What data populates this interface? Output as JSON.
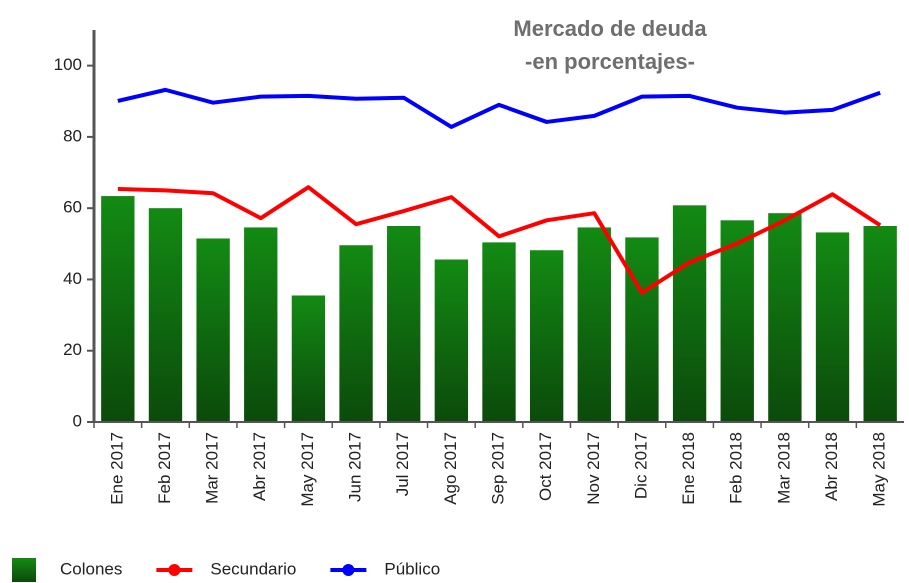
{
  "chart_data": {
    "type": "bar-line",
    "title": "Mercado de deuda",
    "subtitle": "-en porcentajes-",
    "categories": [
      "Ene 2017",
      "Feb 2017",
      "Mar 2017",
      "Abr 2017",
      "May 2017",
      "Jun 2017",
      "Jul 2017",
      "Ago 2017",
      "Sep 2017",
      "Oct 2017",
      "Nov 2017",
      "Dic 2017",
      "Ene 2018",
      "Feb 2018",
      "Mar 2018",
      "Abr 2018",
      "May 2018"
    ],
    "series": [
      {
        "name": "Colones",
        "type": "bar",
        "color": "#138a13",
        "values": [
          63.4,
          60,
          51.5,
          54.6,
          35.5,
          49.6,
          55,
          45.6,
          50.4,
          48.2,
          54.6,
          51.8,
          60.8,
          56.6,
          58.6,
          53.2,
          55
        ]
      },
      {
        "name": "Secundario",
        "type": "line",
        "color": "#ff0000",
        "values": [
          65.4,
          65,
          64.2,
          57.2,
          65.9,
          55.5,
          59.2,
          63.1,
          52.1,
          56.6,
          58.6,
          36.3,
          44.8,
          50.1,
          56.6,
          63.9,
          55.2
        ]
      },
      {
        "name": "Público",
        "type": "line",
        "color": "#0000ff",
        "values": [
          90.1,
          93.2,
          89.6,
          91.3,
          91.5,
          90.7,
          91,
          82.8,
          89,
          84.2,
          85.9,
          91.3,
          91.5,
          88.2,
          86.8,
          87.6,
          92.4
        ]
      }
    ],
    "ylim": [
      0,
      110
    ],
    "yticks": [
      0,
      20,
      40,
      60,
      80,
      100
    ],
    "grid": false,
    "legend": "bottom-left"
  }
}
